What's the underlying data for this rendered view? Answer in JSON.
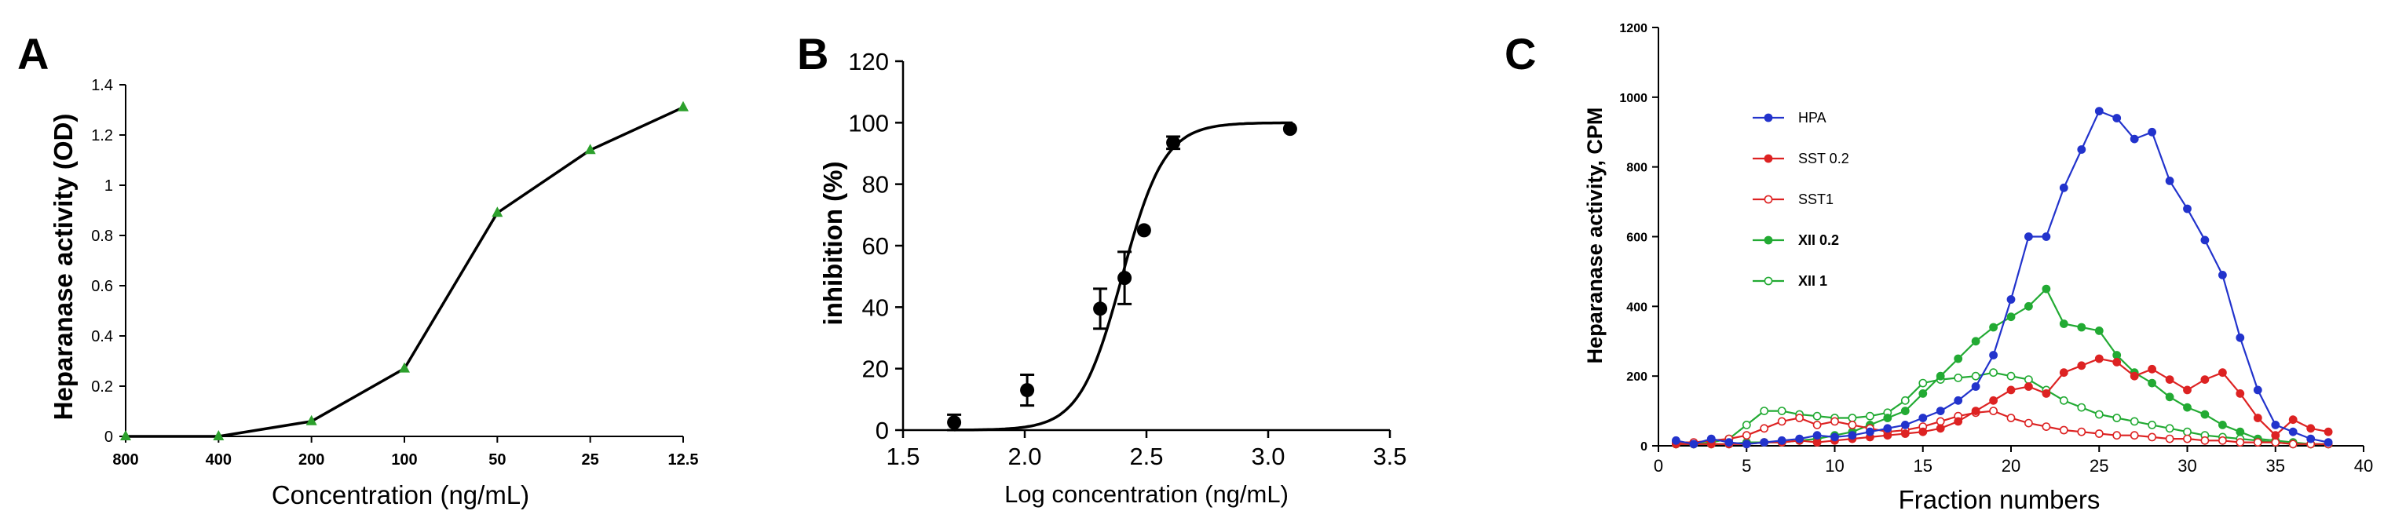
{
  "panels": {
    "A": {
      "letter": "A",
      "chart_data": {
        "type": "line",
        "categories": [
          "800",
          "400",
          "200",
          "100",
          "50",
          "25",
          "12.5"
        ],
        "values": [
          0.0,
          0.0,
          0.06,
          0.27,
          0.89,
          1.14,
          1.31
        ],
        "marker_color": "#2ca02c",
        "line_color": "#000000",
        "xlabel": "Concentration (ng/mL)",
        "ylabel": "Heparanase activity (OD)",
        "ylim": [
          0,
          1.4
        ],
        "yticks": [
          0,
          0.2,
          0.4,
          0.6,
          0.8,
          1,
          1.2,
          1.4
        ],
        "ytick_labels": [
          "0",
          "0.2",
          "0.4",
          "0.6",
          "0.8",
          "1",
          "1.2",
          "1.4"
        ],
        "grid": false
      }
    },
    "B": {
      "letter": "B",
      "chart_data": {
        "type": "scatter",
        "x": [
          1.71,
          2.01,
          2.31,
          2.41,
          2.49,
          2.61,
          3.09
        ],
        "y": [
          2.5,
          13.0,
          39.5,
          49.5,
          65.0,
          93.5,
          98.0
        ],
        "yerr": [
          2.5,
          5.0,
          6.5,
          8.5,
          0,
          2.0,
          0
        ],
        "fit": {
          "bottom": 0,
          "top": 100,
          "log_ic50": 2.4,
          "hill": 5.0
        },
        "marker_color": "#000000",
        "xlabel": "Log concentration (ng/mL)",
        "ylabel": "inhibition (%)",
        "xlim": [
          1.5,
          3.5
        ],
        "ylim": [
          0,
          120
        ],
        "xticks": [
          "1.5",
          "2.0",
          "2.5",
          "3.0",
          "3.5"
        ],
        "yticks": [
          "0",
          "20",
          "40",
          "60",
          "80",
          "100",
          "120"
        ],
        "grid": false
      }
    },
    "C": {
      "letter": "C",
      "chart_data": {
        "type": "line",
        "xlabel": "Fraction numbers",
        "ylabel": "Heparanase activity, CPM",
        "xlim": [
          0,
          40
        ],
        "ylim": [
          0,
          1200
        ],
        "xticks": [
          "0",
          "5",
          "10",
          "15",
          "20",
          "25",
          "30",
          "35",
          "40"
        ],
        "yticks": [
          "0",
          "200",
          "400",
          "600",
          "800",
          "1000",
          "1200"
        ],
        "legend_position": "top-left",
        "grid": false,
        "x": [
          1,
          2,
          3,
          4,
          5,
          6,
          7,
          8,
          9,
          10,
          11,
          12,
          13,
          14,
          15,
          16,
          17,
          18,
          19,
          20,
          21,
          22,
          23,
          24,
          25,
          26,
          27,
          28,
          29,
          30,
          31,
          32,
          33,
          34,
          35,
          36,
          37,
          38
        ],
        "series": [
          {
            "name": "HPA",
            "color": "#2233cc",
            "filled": true,
            "values": [
              15,
              5,
              20,
              10,
              5,
              10,
              15,
              20,
              30,
              25,
              30,
              40,
              50,
              60,
              80,
              100,
              130,
              170,
              260,
              420,
              600,
              600,
              740,
              850,
              960,
              940,
              880,
              900,
              760,
              680,
              590,
              490,
              310,
              160,
              60,
              40,
              20,
              10
            ]
          },
          {
            "name": "SST 0.2",
            "color": "#dd2222",
            "filled": true,
            "values": [
              5,
              5,
              5,
              5,
              5,
              10,
              10,
              15,
              10,
              15,
              20,
              25,
              30,
              35,
              40,
              50,
              70,
              100,
              130,
              160,
              170,
              150,
              210,
              230,
              250,
              240,
              200,
              220,
              190,
              160,
              190,
              210,
              150,
              80,
              30,
              75,
              50,
              40
            ]
          },
          {
            "name": "SST1",
            "color": "#dd2222",
            "filled": false,
            "values": [
              10,
              10,
              15,
              20,
              30,
              50,
              70,
              80,
              60,
              70,
              60,
              50,
              40,
              45,
              55,
              70,
              85,
              95,
              100,
              80,
              65,
              55,
              45,
              40,
              35,
              30,
              30,
              25,
              20,
              20,
              15,
              15,
              10,
              10,
              10,
              5,
              5,
              5
            ]
          },
          {
            "name": "XII 0.2",
            "color": "#22aa33",
            "filled": true,
            "values": [
              5,
              5,
              5,
              5,
              10,
              10,
              10,
              15,
              20,
              30,
              40,
              60,
              80,
              100,
              150,
              200,
              250,
              300,
              340,
              370,
              400,
              450,
              350,
              340,
              330,
              260,
              210,
              180,
              140,
              110,
              90,
              60,
              40,
              20,
              15,
              10,
              5,
              5
            ]
          },
          {
            "name": "XII  1",
            "color": "#22aa33",
            "filled": false,
            "values": [
              5,
              5,
              10,
              20,
              60,
              100,
              100,
              90,
              85,
              80,
              80,
              85,
              95,
              130,
              180,
              190,
              195,
              200,
              210,
              200,
              190,
              160,
              130,
              110,
              90,
              80,
              70,
              60,
              50,
              40,
              30,
              25,
              20,
              15,
              10,
              5,
              5,
              5
            ]
          }
        ]
      }
    }
  }
}
